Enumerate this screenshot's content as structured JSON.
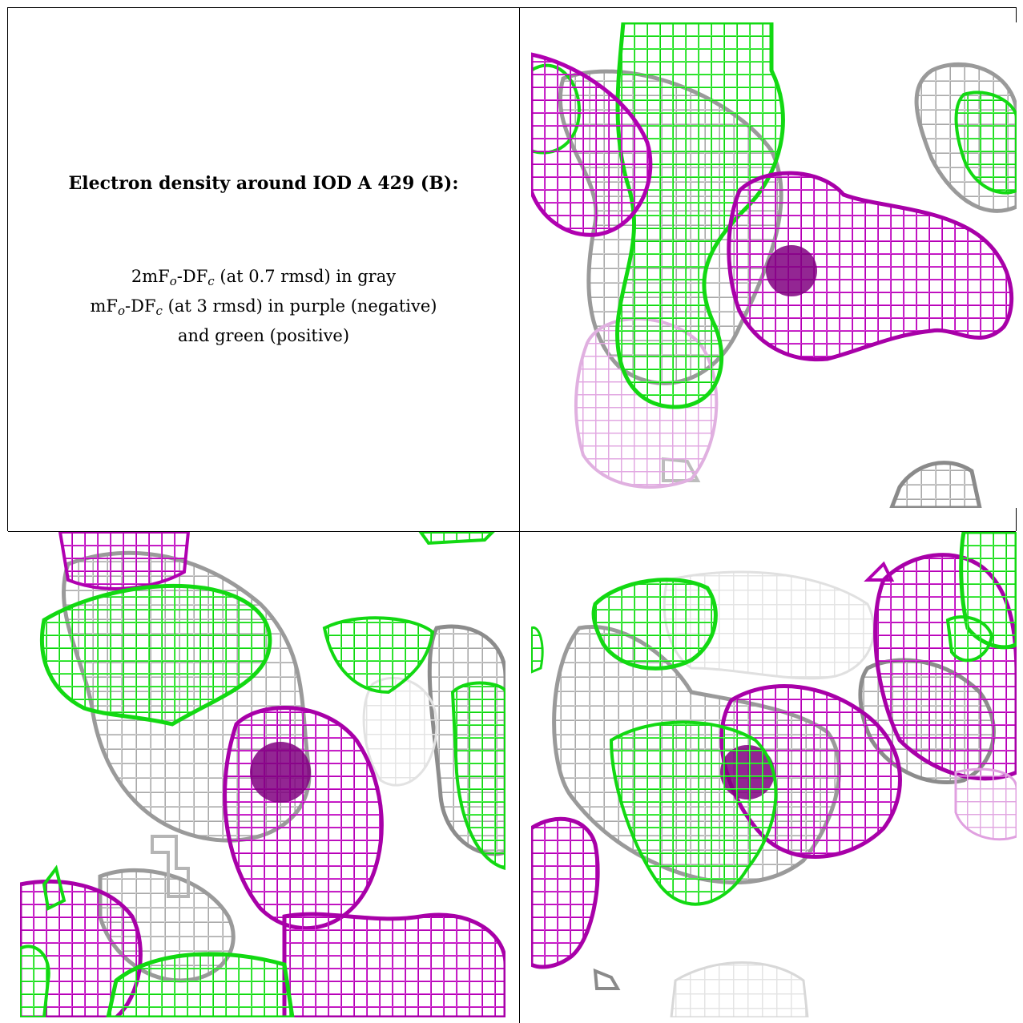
{
  "caption": {
    "title": "Electron density around IOD A 429 (B):",
    "line1": {
      "prefix": "2mF",
      "sub1": "o",
      "mid": "-DF",
      "sub2": "c",
      "suffix": " (at 0.7 rmsd) in gray"
    },
    "line2": {
      "prefix": "mF",
      "sub1": "o",
      "mid": "-DF",
      "sub2": "c",
      "suffix": " (at 3 rmsd) in purple (negative)"
    },
    "line3": "and green (positive)"
  },
  "colors": {
    "gray": "#a0a0a0",
    "purple": "#cc00cc",
    "green": "#1ee81e",
    "atom": "#800080"
  },
  "panels": [
    "view-1",
    "view-2",
    "view-3"
  ]
}
